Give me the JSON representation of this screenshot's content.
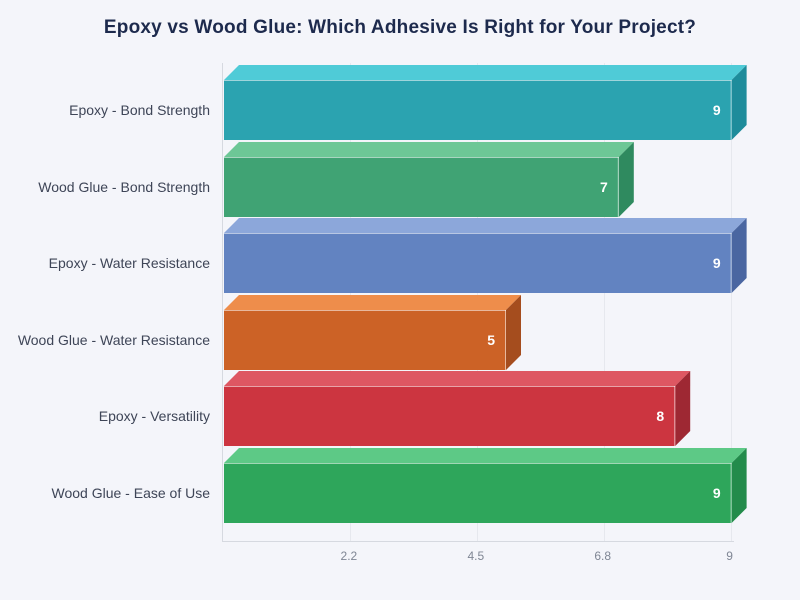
{
  "title": "Epoxy vs Wood Glue: Which Adhesive Is Right for Your Project?",
  "colors": {
    "background": "#f4f5fa",
    "title": "#1d2a4d",
    "axis_line": "#d6d9e0",
    "gridline": "#e6e8ee",
    "tick_label": "#7f8694",
    "category_label": "#3e4557",
    "value_label": "#ffffff"
  },
  "chart_data": {
    "type": "bar",
    "orientation": "horizontal",
    "title": "Epoxy vs Wood Glue: Which Adhesive Is Right for Your Project?",
    "categories": [
      "Epoxy - Bond Strength",
      "Wood Glue - Bond Strength",
      "Epoxy - Water Resistance",
      "Wood Glue - Water Resistance",
      "Epoxy - Versatility",
      "Wood Glue - Ease of Use"
    ],
    "values": [
      9,
      7,
      9,
      5,
      8,
      9
    ],
    "value_labels": [
      "9",
      "7",
      "9",
      "5",
      "8",
      "9"
    ],
    "bar_colors": [
      {
        "front": "#2BA3B0",
        "top": "#4FCBD7",
        "side": "#1E8C9B"
      },
      {
        "front": "#40A374",
        "top": "#6DC796",
        "side": "#2F8A5F"
      },
      {
        "front": "#6283C1",
        "top": "#8CA7DA",
        "side": "#4A66A1"
      },
      {
        "front": "#CC6226",
        "top": "#EE8D4B",
        "side": "#A54D1E"
      },
      {
        "front": "#CC3540",
        "top": "#DE5762",
        "side": "#9E2833"
      },
      {
        "front": "#2EA65B",
        "top": "#5DC986",
        "side": "#238B4B"
      }
    ],
    "xlabel": "",
    "ylabel": "",
    "xlim": [
      0,
      9.06
    ],
    "xticks": [
      {
        "value": 2.25,
        "label": "2.2"
      },
      {
        "value": 4.5,
        "label": "4.5"
      },
      {
        "value": 6.75,
        "label": "6.8"
      },
      {
        "value": 9,
        "label": "9"
      }
    ],
    "grid": "vertical",
    "legend": "none",
    "style": "3d-extruded-bars"
  }
}
